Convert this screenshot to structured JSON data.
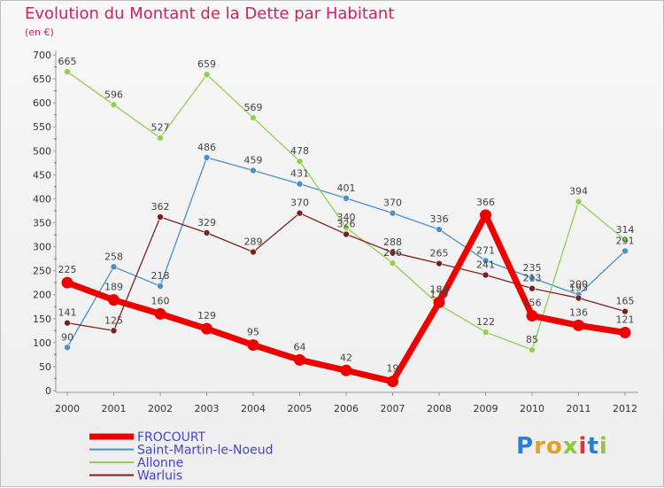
{
  "chart_data": {
    "type": "line",
    "title": "Evolution du Montant de la Dette par Habitant",
    "ylabel": "(en €)",
    "xlabel": "",
    "ylim": [
      0,
      700
    ],
    "y_ticks": [
      0,
      50,
      100,
      150,
      200,
      250,
      300,
      350,
      400,
      450,
      500,
      550,
      600,
      650,
      700
    ],
    "categories": [
      "2000",
      "2001",
      "2002",
      "2003",
      "2004",
      "2005",
      "2006",
      "2007",
      "2008",
      "2009",
      "2010",
      "2011",
      "2012"
    ],
    "series": [
      {
        "name": "Saint-Martin-le-Noeud",
        "color": "#4a8fc8",
        "values": [
          90,
          258,
          218,
          486,
          459,
          431,
          401,
          370,
          336,
          271,
          235,
          200,
          291
        ]
      },
      {
        "name": "Allonne",
        "color": "#8fd14f",
        "values": [
          665,
          596,
          527,
          659,
          569,
          478,
          340,
          266,
          179,
          122,
          85,
          394,
          314
        ]
      },
      {
        "name": "Warluis",
        "color": "#7a2020",
        "values": [
          141,
          125,
          362,
          329,
          289,
          370,
          326,
          288,
          265,
          241,
          213,
          193,
          165
        ]
      },
      {
        "name": "FROCOURT",
        "color": "#ee0000",
        "values": [
          225,
          189,
          160,
          129,
          95,
          64,
          42,
          19,
          184,
          366,
          156,
          136,
          121
        ]
      }
    ],
    "legend": [
      "FROCOURT",
      "Saint-Martin-le-Noeud",
      "Allonne",
      "Warluis"
    ],
    "legend_position": "bottom-left",
    "grid": false
  },
  "logo": {
    "letters": [
      "P",
      "r",
      "o",
      "x",
      "i",
      "t",
      "i"
    ]
  }
}
